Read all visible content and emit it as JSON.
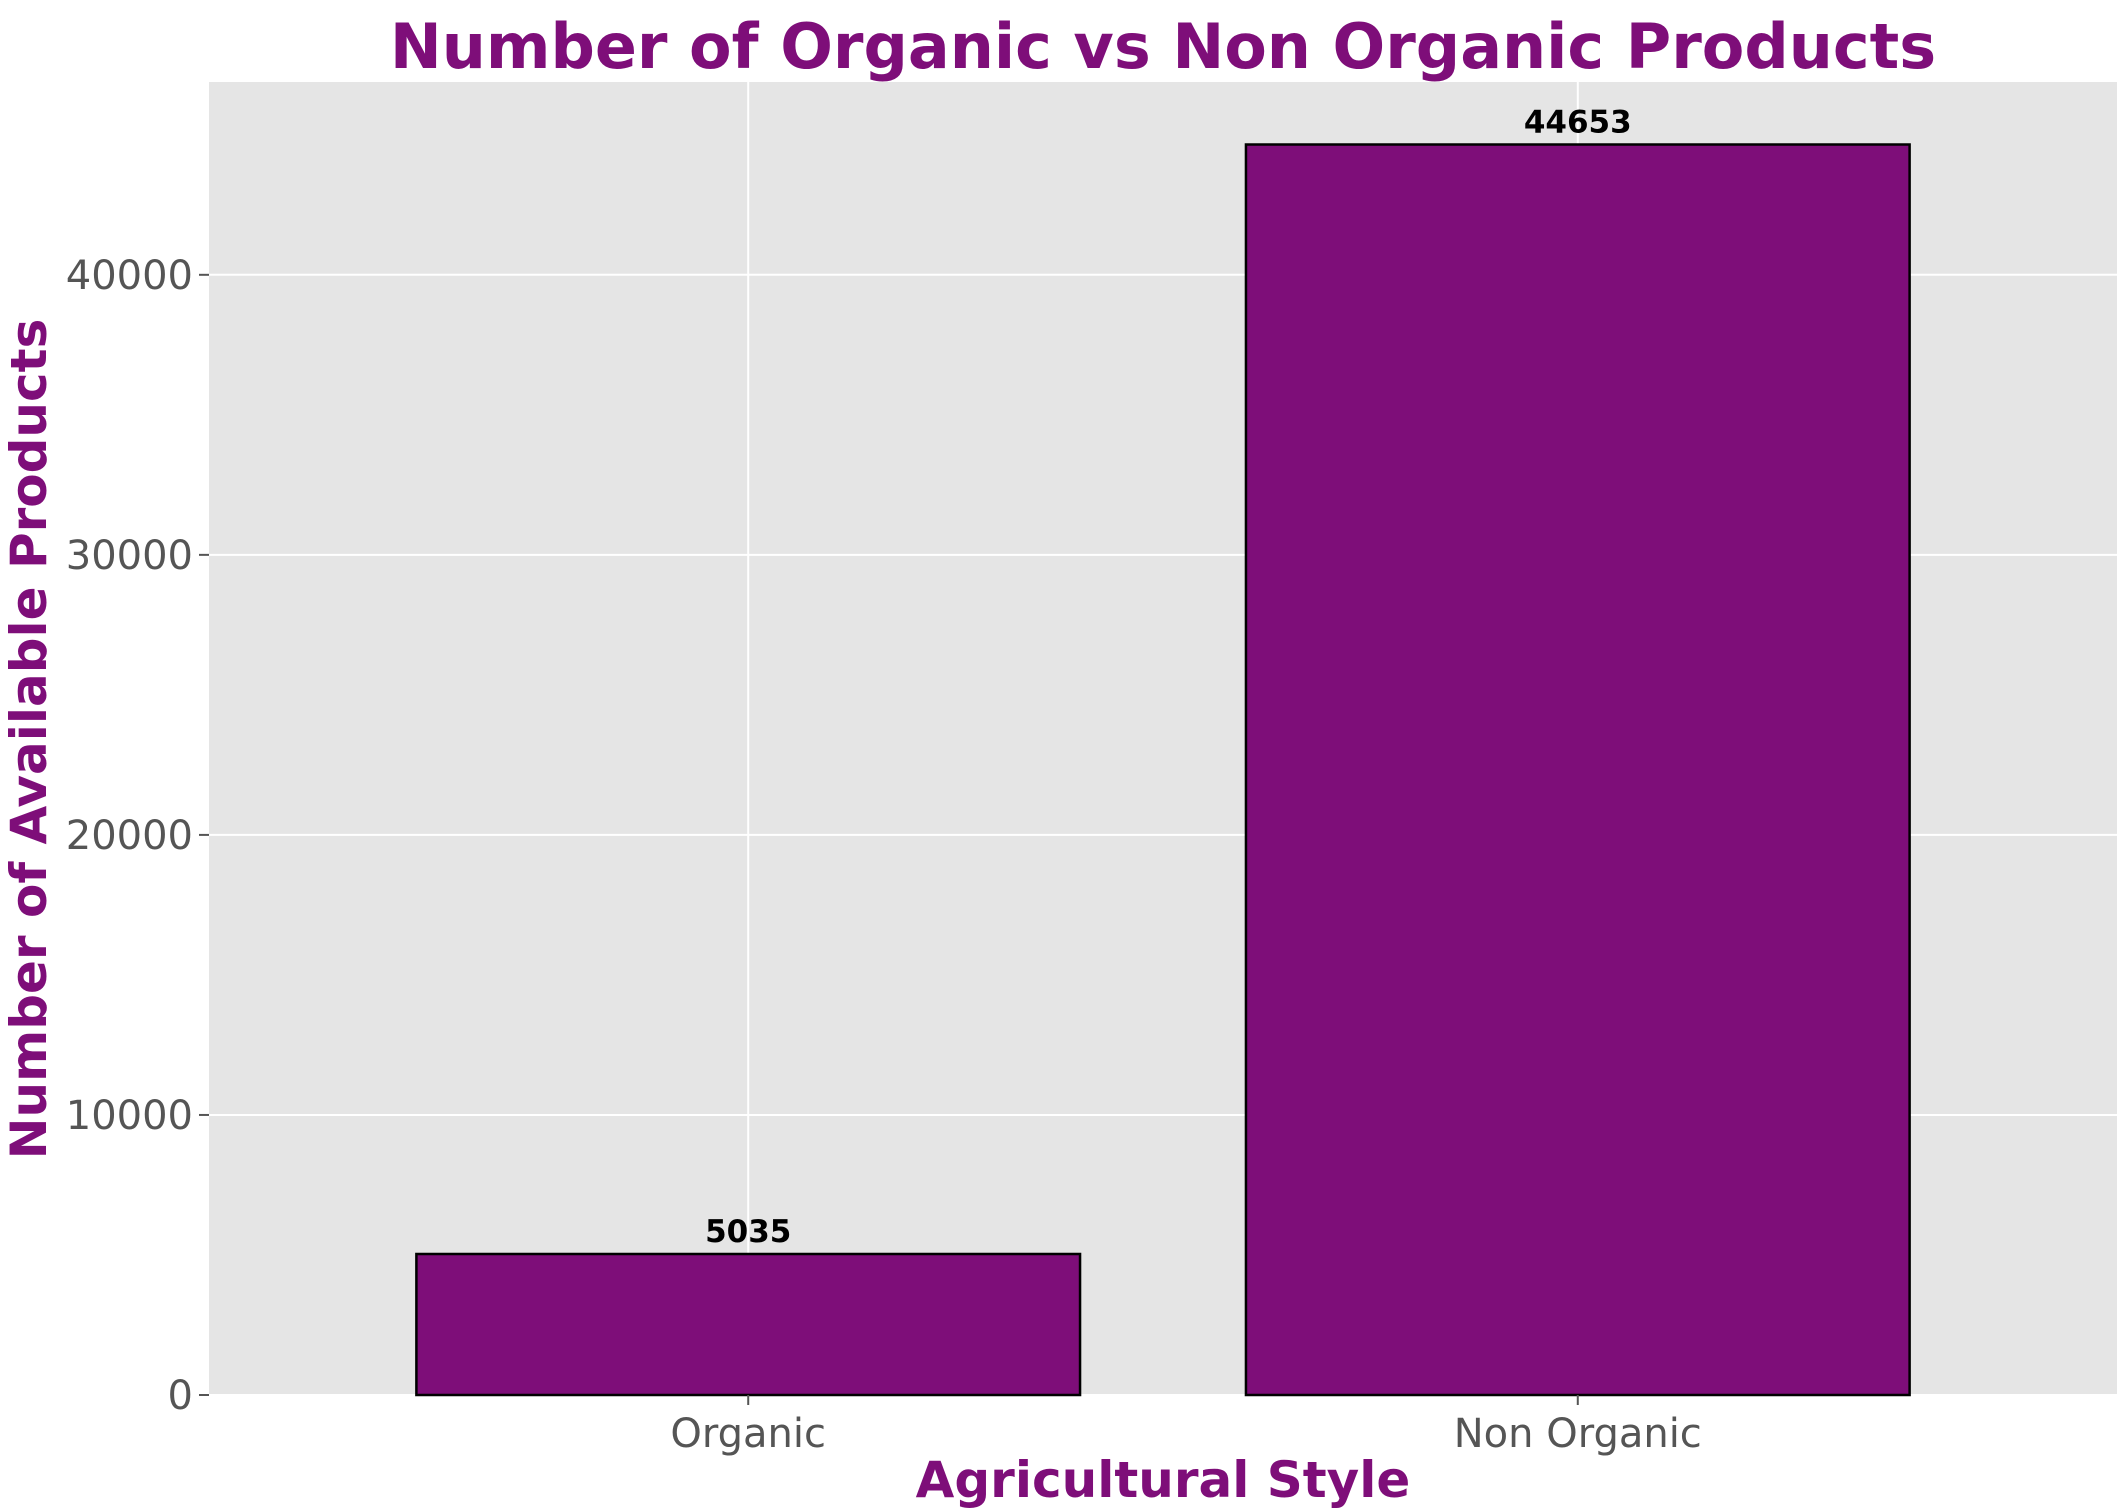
{
  "chart_data": {
    "type": "bar",
    "title": "Number of Organic vs Non Organic Products",
    "xlabel": "Agricultural Style",
    "ylabel": "Number of Available Products",
    "categories": [
      "Organic",
      "Non Organic"
    ],
    "values": [
      5035,
      44653
    ],
    "data_labels": [
      "5035",
      "44653"
    ],
    "yticks": [
      0,
      10000,
      20000,
      30000,
      40000
    ],
    "ytick_labels": [
      "0",
      "10000",
      "20000",
      "30000",
      "40000"
    ],
    "ylim": [
      0,
      46885
    ],
    "grid": true,
    "legend": "none"
  },
  "colors": {
    "bar_fill": "#7e0e79",
    "bar_edge": "#000000",
    "title": "#7e0e79",
    "axis_label": "#7e0e79",
    "plot_background": "#e5e5e5",
    "grid": "#ffffff",
    "tick_label": "#555555"
  }
}
